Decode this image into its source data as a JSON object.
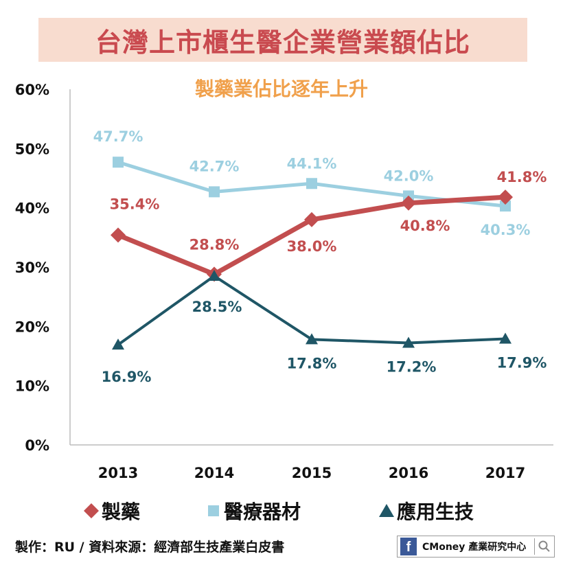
{
  "header": {
    "title": "台灣上市櫃生醫企業營業額佔比",
    "subtitle": "製藥業佔比逐年上升"
  },
  "colors": {
    "pharma": "#c24e4f",
    "devices": "#9ccfe0",
    "biotech": "#1f5666",
    "title_text": "#c94a4f",
    "title_band": "#f8dccf",
    "subtitle_text": "#f0a04b"
  },
  "chart_data": {
    "type": "line",
    "title": "台灣上市櫃生醫企業營業額佔比",
    "subtitle": "製藥業佔比逐年上升",
    "categories": [
      "2013",
      "2014",
      "2015",
      "2016",
      "2017"
    ],
    "y_ticks": [
      "0%",
      "10%",
      "20%",
      "30%",
      "40%",
      "50%",
      "60%"
    ],
    "ylim": [
      0,
      60
    ],
    "xlabel": "",
    "ylabel": "",
    "grid": false,
    "legend_position": "bottom",
    "series": [
      {
        "key": "devices",
        "name": "醫療器材",
        "marker": "square",
        "values": [
          47.7,
          42.7,
          44.1,
          42.0,
          40.3
        ],
        "labels": [
          "47.7%",
          "42.7%",
          "44.1%",
          "42.0%",
          "40.3%"
        ]
      },
      {
        "key": "pharma",
        "name": "製藥",
        "marker": "diamond",
        "values": [
          35.4,
          28.8,
          38.0,
          40.8,
          41.8
        ],
        "labels": [
          "35.4%",
          "28.8%",
          "38.0%",
          "40.8%",
          "41.8%"
        ]
      },
      {
        "key": "biotech",
        "name": "應用生技",
        "marker": "triangle",
        "values": [
          16.9,
          28.5,
          17.8,
          17.2,
          17.9
        ],
        "labels": [
          "16.9%",
          "28.5%",
          "17.8%",
          "17.2%",
          "17.9%"
        ]
      }
    ]
  },
  "footer": {
    "source": "製作：RU / 資料來源：經濟部生技產業白皮書",
    "brand_icon": "f",
    "brand": "CMoney 產業研究中心"
  }
}
